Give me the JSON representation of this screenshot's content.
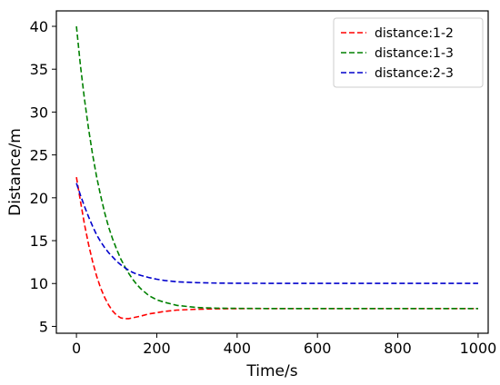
{
  "chart_data": {
    "type": "line",
    "title": "",
    "xlabel": "Time/s",
    "ylabel": "Distance/m",
    "xlim": [
      -50,
      1025
    ],
    "ylim": [
      4.2,
      41.8
    ],
    "xticks": [
      0,
      200,
      400,
      600,
      800,
      1000
    ],
    "yticks": [
      5,
      10,
      15,
      20,
      25,
      30,
      35,
      40
    ],
    "grid": false,
    "legend_position": "top-right",
    "line_style": "dashed",
    "series": [
      {
        "name": "distance:1-2",
        "color": "#ff0000",
        "x": [
          0,
          5,
          10,
          20,
          30,
          40,
          50,
          60,
          70,
          80,
          90,
          100,
          110,
          120,
          130,
          140,
          160,
          180,
          200,
          220,
          250,
          300,
          350,
          400,
          500,
          600,
          700,
          800,
          900,
          1000
        ],
        "y": [
          22.4,
          21.0,
          19.6,
          16.9,
          14.6,
          12.6,
          10.9,
          9.5,
          8.4,
          7.5,
          6.8,
          6.3,
          6.0,
          5.9,
          5.9,
          6.0,
          6.2,
          6.45,
          6.6,
          6.75,
          6.9,
          7.0,
          7.05,
          7.07,
          7.08,
          7.08,
          7.08,
          7.08,
          7.08,
          7.08
        ]
      },
      {
        "name": "distance:1-3",
        "color": "#008000",
        "x": [
          0,
          10,
          20,
          30,
          40,
          50,
          60,
          70,
          80,
          90,
          100,
          110,
          120,
          130,
          140,
          150,
          160,
          180,
          200,
          220,
          250,
          300,
          350,
          400,
          500,
          600,
          700,
          800,
          900,
          1000
        ],
        "y": [
          40.0,
          35.4,
          31.5,
          28.1,
          25.1,
          22.5,
          20.3,
          18.3,
          16.6,
          15.2,
          14.0,
          12.9,
          12.0,
          11.2,
          10.5,
          9.9,
          9.4,
          8.6,
          8.1,
          7.8,
          7.45,
          7.2,
          7.12,
          7.1,
          7.08,
          7.08,
          7.08,
          7.08,
          7.08,
          7.08
        ]
      },
      {
        "name": "distance:2-3",
        "color": "#0000cc",
        "x": [
          0,
          10,
          20,
          30,
          40,
          50,
          60,
          70,
          80,
          90,
          100,
          110,
          120,
          130,
          140,
          150,
          160,
          180,
          200,
          220,
          250,
          300,
          350,
          400,
          500,
          600,
          700,
          800,
          900,
          1000
        ],
        "y": [
          21.7,
          20.3,
          19.0,
          17.8,
          16.7,
          15.7,
          14.9,
          14.2,
          13.6,
          13.1,
          12.6,
          12.2,
          11.85,
          11.55,
          11.3,
          11.1,
          10.95,
          10.7,
          10.5,
          10.35,
          10.2,
          10.1,
          10.05,
          10.03,
          10.02,
          10.02,
          10.02,
          10.02,
          10.02,
          10.02
        ]
      }
    ]
  }
}
